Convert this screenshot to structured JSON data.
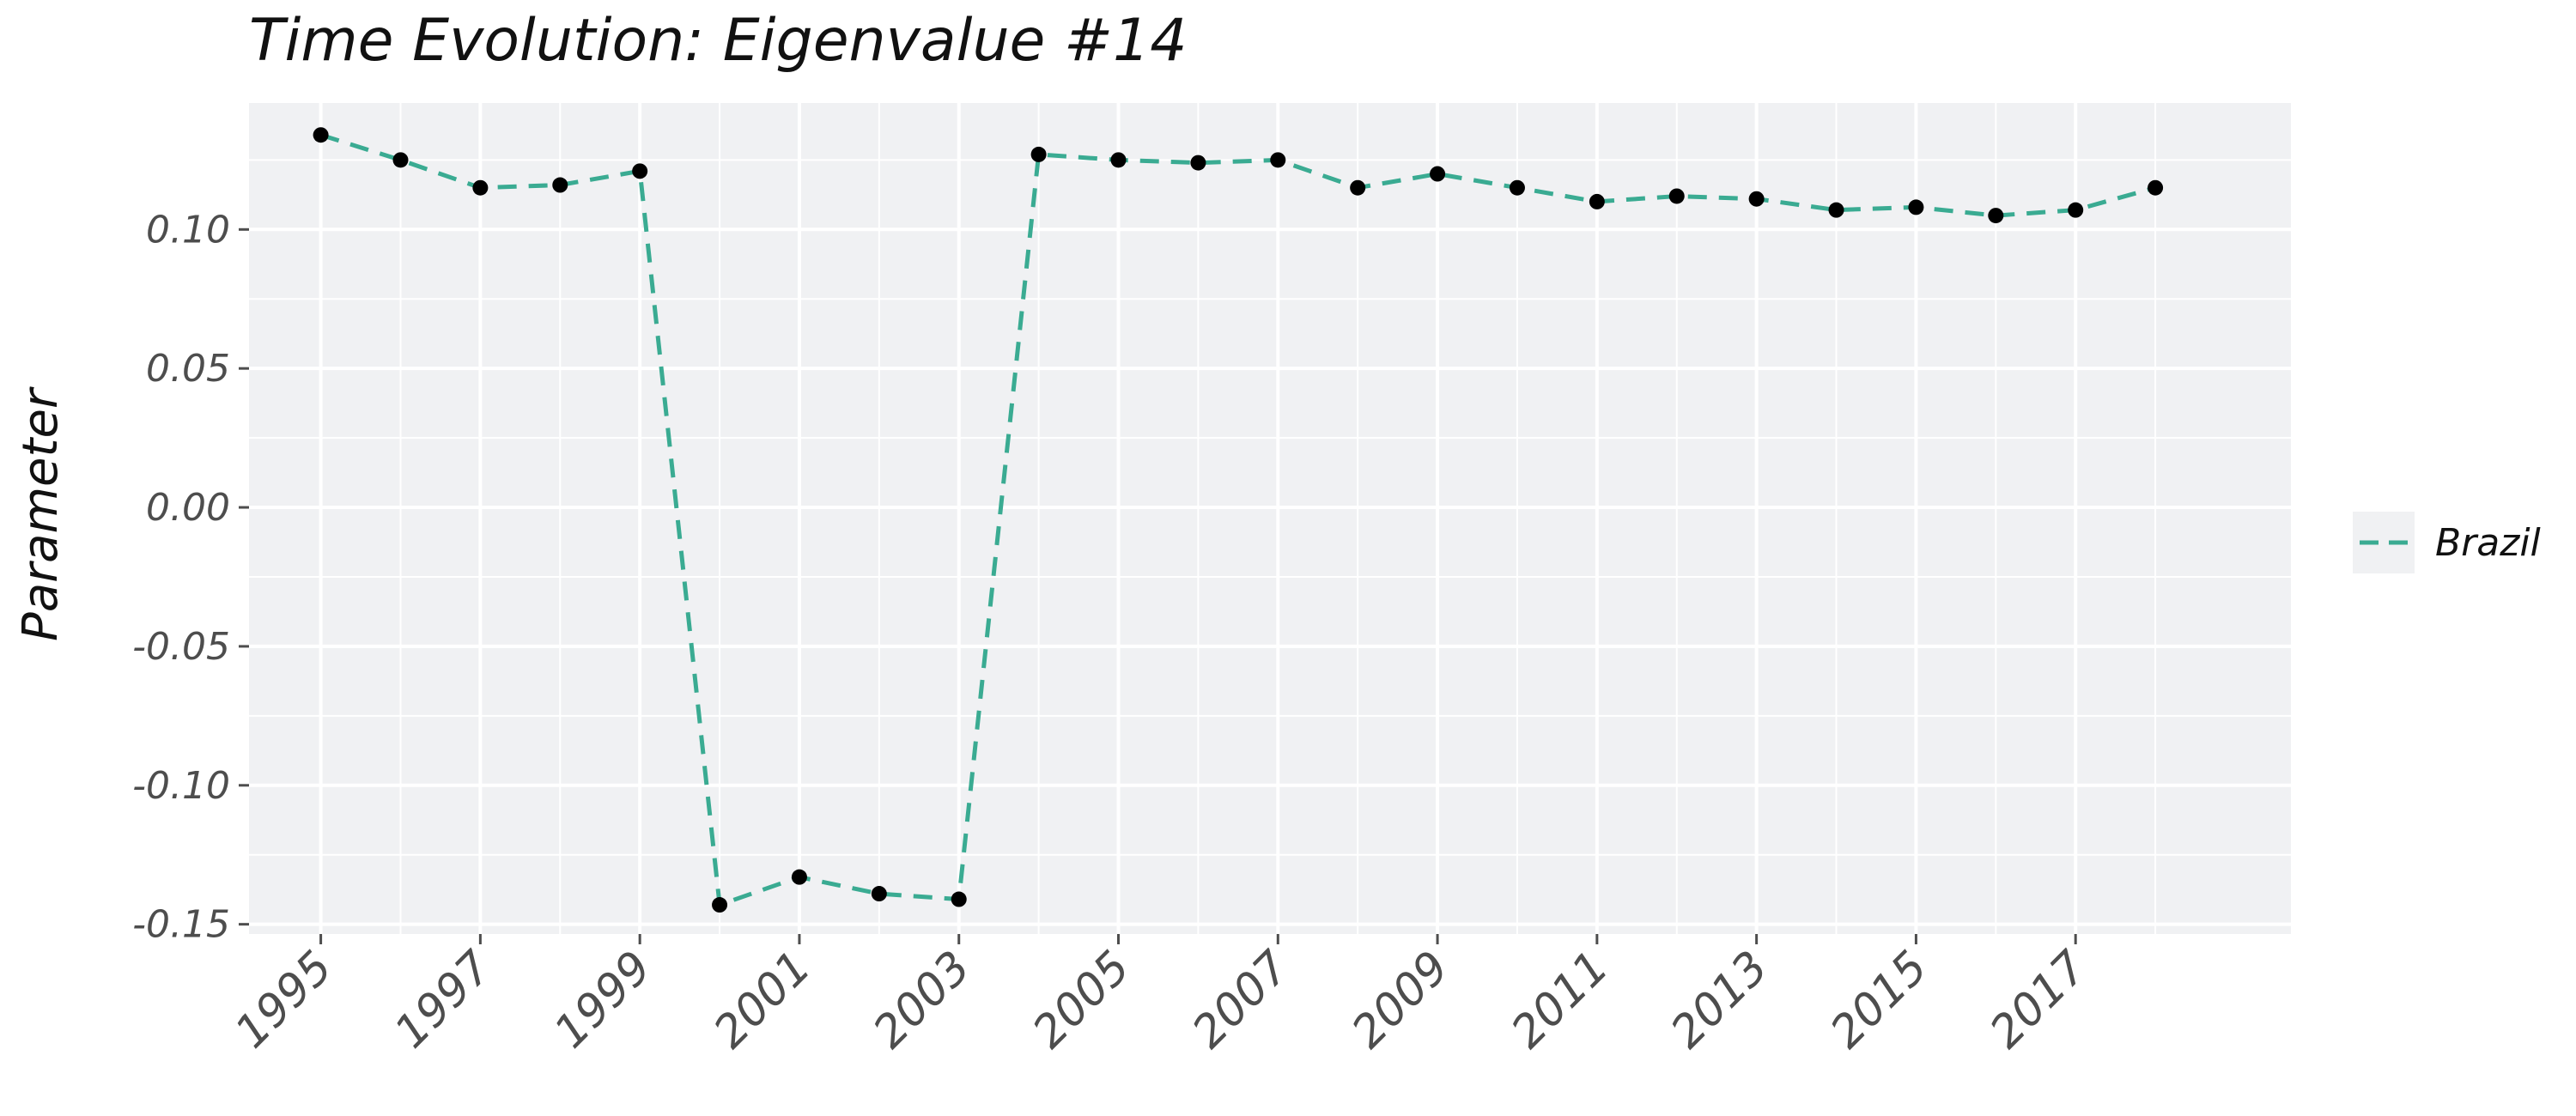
{
  "chart_data": {
    "type": "line",
    "title": "Time Evolution: Eigenvalue #14",
    "xlabel": "",
    "ylabel": "Parameter",
    "x": [
      1995,
      1996,
      1997,
      1998,
      1999,
      2000,
      2001,
      2002,
      2003,
      2004,
      2005,
      2006,
      2007,
      2008,
      2009,
      2010,
      2011,
      2012,
      2013,
      2014,
      2015,
      2016,
      2017,
      2018
    ],
    "series": [
      {
        "name": "Brazil",
        "color": "#3aab92",
        "line_style": "dashed",
        "marker_color": "#000000",
        "values": [
          0.134,
          0.125,
          0.115,
          0.116,
          0.121,
          -0.143,
          -0.133,
          -0.139,
          -0.141,
          0.127,
          0.125,
          0.124,
          0.125,
          0.115,
          0.12,
          0.115,
          0.11,
          0.112,
          0.111,
          0.107,
          0.108,
          0.105,
          0.107,
          0.115
        ]
      }
    ],
    "xticks": [
      "1995",
      "1997",
      "1999",
      "2001",
      "2003",
      "2005",
      "2007",
      "2009",
      "2011",
      "2013",
      "2015",
      "2017"
    ],
    "yticks": [
      "0.10",
      "0.05",
      "0.00",
      "-0.05",
      "-0.10",
      "-0.15"
    ],
    "xlim": [
      1994.1,
      2019.7
    ],
    "ylim": [
      -0.1535,
      0.1455
    ],
    "grid": true,
    "panel_background": "#f0f1f3",
    "legend_position": "right"
  }
}
